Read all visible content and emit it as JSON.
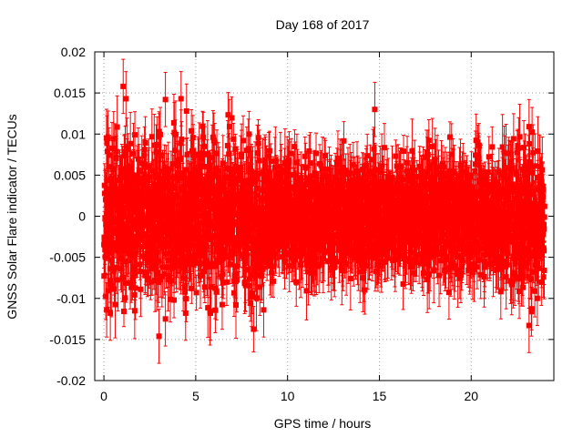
{
  "chart_data": {
    "type": "scatter",
    "title": "Day 168 of 2017",
    "xlabel": "GPS time / hours",
    "ylabel": "GNSS Solar Flare indicator / TECUs",
    "xlim": [
      -0.5,
      24.5
    ],
    "ylim": [
      -0.02,
      0.02
    ],
    "xticks": [
      0,
      5,
      10,
      15,
      20
    ],
    "xtick_labels": [
      "0",
      "5",
      "10",
      "15",
      "20"
    ],
    "yticks": [
      0.02,
      0.015,
      0.01,
      0.005,
      0,
      -0.005,
      -0.01,
      -0.015,
      -0.02
    ],
    "ytick_labels": [
      "0.02",
      "0.015",
      "0.01",
      "0.005",
      "0",
      "-0.005",
      "-0.01",
      "-0.015",
      "-0.02"
    ],
    "grid": true,
    "legend": "none",
    "marker": "square",
    "error_bars": true,
    "series_color": "#ff0000",
    "x_range_data": [
      0,
      24
    ],
    "sampling_interval_hours": 0.0083,
    "typical_value_spread": [
      -0.008,
      0.008
    ],
    "typical_error_bar_halfwidth": 0.003,
    "notable_points": [
      {
        "x": 1.05,
        "y": 0.0158
      },
      {
        "x": 1.2,
        "y": 0.0143
      },
      {
        "x": 3.35,
        "y": 0.0142
      },
      {
        "x": 4.2,
        "y": 0.0143
      },
      {
        "x": 4.5,
        "y": 0.0128
      },
      {
        "x": 14.75,
        "y": 0.013
      },
      {
        "x": 23.15,
        "y": 0.0109
      },
      {
        "x": 0.15,
        "y": -0.0114
      },
      {
        "x": 0.35,
        "y": -0.0118
      },
      {
        "x": 3.0,
        "y": -0.0146
      },
      {
        "x": 3.35,
        "y": -0.0125
      },
      {
        "x": 4.45,
        "y": -0.0118
      },
      {
        "x": 5.8,
        "y": -0.0118
      },
      {
        "x": 8.7,
        "y": -0.0114
      },
      {
        "x": 23.15,
        "y": -0.0133
      },
      {
        "x": 23.6,
        "y": -0.01
      }
    ]
  }
}
